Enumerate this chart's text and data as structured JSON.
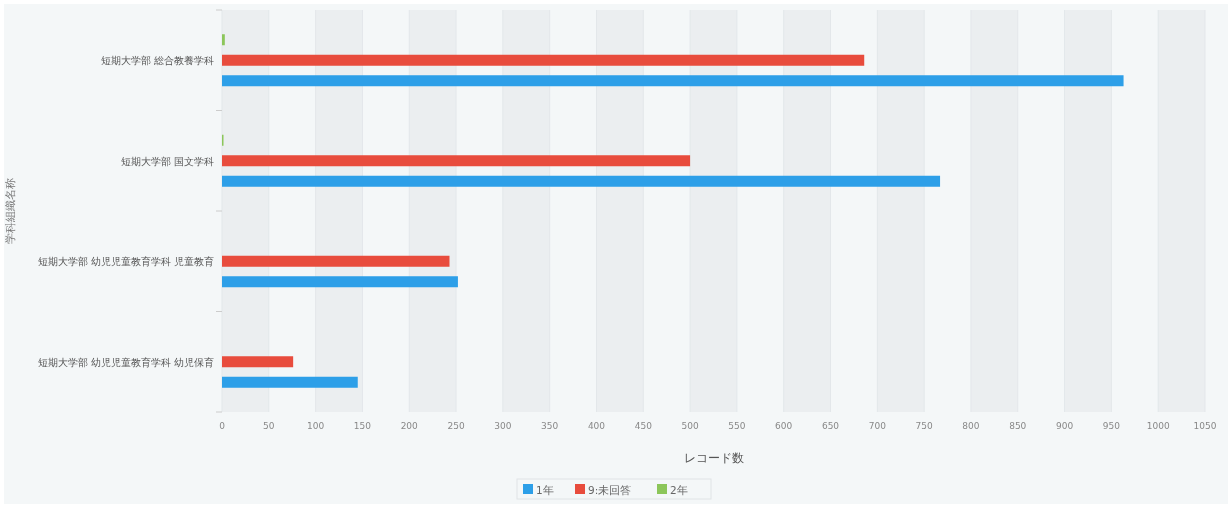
{
  "chart_data": {
    "type": "bar",
    "orientation": "horizontal",
    "xlabel": "レコード数",
    "ylabel": "学科組織名称",
    "categories": [
      "短期大学部 総合教養学科",
      "短期大学部 国文学科",
      "短期大学部 幼児児童教育学科 児童教育",
      "短期大学部 幼児児童教育学科 幼児保育"
    ],
    "series": [
      {
        "name": "1年",
        "color": "#2d9fe8",
        "values": [
          963,
          767,
          252,
          145
        ]
      },
      {
        "name": "9:未回答",
        "color": "#e84c3d",
        "values": [
          686,
          500,
          243,
          76
        ]
      },
      {
        "name": "2年",
        "color": "#8cc65a",
        "values": [
          3,
          1,
          null,
          null
        ]
      }
    ],
    "xlim": [
      0,
      1050
    ],
    "xticks": [
      0,
      50,
      100,
      150,
      200,
      250,
      300,
      350,
      400,
      450,
      500,
      550,
      600,
      650,
      700,
      750,
      800,
      850,
      900,
      950,
      1000,
      1050
    ],
    "grid": "x",
    "legend": "bottom"
  }
}
